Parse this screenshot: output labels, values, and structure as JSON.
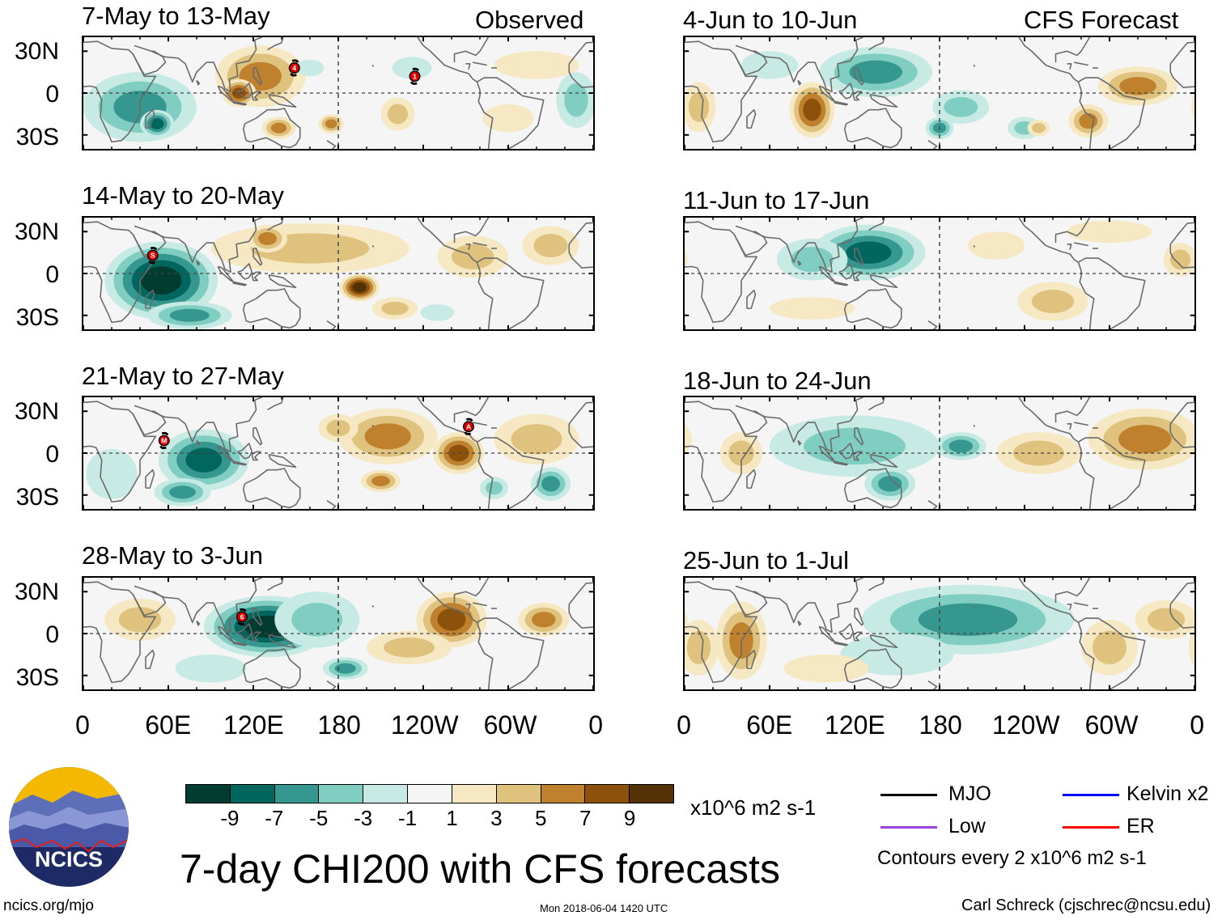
{
  "header": {
    "observed_label": "Observed",
    "forecast_label": "CFS Forecast"
  },
  "lat_labels": [
    "30N",
    "0",
    "30S"
  ],
  "lon_labels": [
    "0",
    "60E",
    "120E",
    "180",
    "120W",
    "60W",
    "0"
  ],
  "palette": [
    "#003c30",
    "#01665e",
    "#35978f",
    "#80cdc1",
    "#c7eae5",
    "#f5f5f5",
    "#f6e8c3",
    "#dfc27d",
    "#bf812d",
    "#8c510a",
    "#543005"
  ],
  "colorbar": {
    "ticks": [
      "-9",
      "-7",
      "-5",
      "-3",
      "-1",
      "1",
      "3",
      "5",
      "7",
      "9"
    ],
    "units": "x10^6 m2 s-1"
  },
  "panels": [
    {
      "title": "7-May to 13-May",
      "kind": "observed",
      "features": [
        [
          125,
          12,
          32,
          22,
          6
        ],
        [
          110,
          0,
          12,
          10,
          7
        ],
        [
          138,
          -25,
          12,
          8,
          5
        ],
        [
          175,
          -22,
          9,
          7,
          5
        ],
        [
          222,
          -15,
          12,
          12,
          4
        ],
        [
          300,
          -18,
          18,
          10,
          2
        ],
        [
          40,
          -10,
          40,
          25,
          -6
        ],
        [
          52,
          -22,
          12,
          10,
          -8
        ],
        [
          348,
          -5,
          14,
          20,
          -4
        ],
        [
          232,
          18,
          14,
          8,
          -2
        ],
        [
          160,
          18,
          10,
          6,
          -2
        ],
        [
          320,
          20,
          30,
          10,
          2
        ]
      ],
      "storms": [
        {
          "label": "4",
          "lon": 149,
          "lat": 18
        },
        {
          "label": "1",
          "lon": 234,
          "lat": 12
        }
      ]
    },
    {
      "title": "14-May to 20-May",
      "kind": "observed",
      "features": [
        [
          55,
          -5,
          40,
          28,
          -10
        ],
        [
          75,
          -30,
          30,
          10,
          -6
        ],
        [
          195,
          -10,
          14,
          10,
          9
        ],
        [
          220,
          -25,
          16,
          8,
          4
        ],
        [
          160,
          18,
          70,
          18,
          4
        ],
        [
          130,
          25,
          14,
          10,
          6
        ],
        [
          275,
          12,
          25,
          15,
          3
        ],
        [
          330,
          20,
          20,
          14,
          3
        ],
        [
          250,
          -28,
          12,
          6,
          -2
        ]
      ],
      "storms": [
        {
          "label": "S",
          "lon": 49,
          "lat": 13
        }
      ]
    },
    {
      "title": "21-May to 27-May",
      "kind": "observed",
      "features": [
        [
          85,
          -5,
          32,
          22,
          -8
        ],
        [
          70,
          -28,
          20,
          10,
          -5
        ],
        [
          215,
          12,
          35,
          20,
          5
        ],
        [
          265,
          0,
          18,
          15,
          7
        ],
        [
          210,
          -20,
          14,
          8,
          5
        ],
        [
          180,
          18,
          14,
          10,
          3
        ],
        [
          330,
          -22,
          14,
          12,
          -5
        ],
        [
          290,
          -25,
          10,
          8,
          -3
        ],
        [
          20,
          -15,
          18,
          18,
          -2
        ],
        [
          320,
          10,
          30,
          18,
          3
        ]
      ],
      "storms": [
        {
          "label": "M",
          "lon": 57,
          "lat": 9
        },
        {
          "label": "A",
          "lon": 272,
          "lat": 19
        }
      ]
    },
    {
      "title": "28-May to 3-Jun",
      "kind": "observed",
      "features": [
        [
          130,
          5,
          45,
          22,
          -10
        ],
        [
          185,
          -25,
          16,
          8,
          -5
        ],
        [
          165,
          10,
          30,
          20,
          -3
        ],
        [
          40,
          10,
          25,
          15,
          3
        ],
        [
          260,
          10,
          25,
          20,
          7
        ],
        [
          325,
          10,
          18,
          12,
          5
        ],
        [
          230,
          -10,
          30,
          12,
          3
        ],
        [
          90,
          -25,
          25,
          10,
          -2
        ]
      ],
      "storms": [
        {
          "label": "6",
          "lon": 112,
          "lat": 12
        }
      ]
    },
    {
      "title": "4-Jun to 10-Jun",
      "kind": "forecast",
      "features": [
        [
          90,
          -12,
          16,
          20,
          7
        ],
        [
          135,
          15,
          40,
          18,
          -5
        ],
        [
          180,
          -25,
          10,
          8,
          -5
        ],
        [
          195,
          -10,
          20,
          12,
          -3
        ],
        [
          240,
          -25,
          12,
          8,
          -3
        ],
        [
          320,
          5,
          28,
          14,
          6
        ],
        [
          285,
          -20,
          14,
          12,
          5
        ],
        [
          250,
          -25,
          8,
          6,
          3
        ],
        [
          10,
          -10,
          12,
          18,
          3
        ],
        [
          60,
          20,
          20,
          10,
          -2
        ]
      ],
      "storms": []
    },
    {
      "title": "11-Jun to 17-Jun",
      "kind": "forecast",
      "features": [
        [
          130,
          15,
          40,
          20,
          -7
        ],
        [
          90,
          10,
          25,
          15,
          -3
        ],
        [
          260,
          -20,
          25,
          14,
          4
        ],
        [
          350,
          10,
          12,
          12,
          3
        ],
        [
          300,
          30,
          30,
          8,
          2
        ],
        [
          90,
          -25,
          30,
          8,
          2
        ],
        [
          220,
          20,
          20,
          10,
          2
        ]
      ],
      "storms": []
    },
    {
      "title": "18-Jun to 24-Jun",
      "kind": "forecast",
      "features": [
        [
          120,
          5,
          60,
          22,
          -4
        ],
        [
          195,
          5,
          18,
          10,
          -5
        ],
        [
          145,
          -22,
          18,
          12,
          -5
        ],
        [
          325,
          10,
          40,
          22,
          5
        ],
        [
          40,
          0,
          15,
          15,
          4
        ],
        [
          250,
          0,
          30,
          15,
          3
        ]
      ],
      "storms": []
    },
    {
      "title": "25-Jun to 1-Jul",
      "kind": "forecast",
      "features": [
        [
          200,
          10,
          75,
          25,
          -5
        ],
        [
          150,
          -15,
          40,
          15,
          -2
        ],
        [
          40,
          -5,
          18,
          28,
          6
        ],
        [
          10,
          -10,
          14,
          20,
          3
        ],
        [
          300,
          -10,
          20,
          20,
          3
        ],
        [
          340,
          10,
          22,
          14,
          4
        ],
        [
          100,
          -25,
          30,
          10,
          2
        ]
      ],
      "storms": []
    }
  ],
  "legend": {
    "items": [
      {
        "label": "MJO",
        "color": "#000000"
      },
      {
        "label": "Kelvin x2",
        "color": "#0000ff"
      },
      {
        "label": "Low",
        "color": "#a040e0"
      },
      {
        "label": "ER",
        "color": "#ff0000"
      }
    ],
    "contours_note": "Contours every 2 x10^6 m2 s-1"
  },
  "footer": {
    "main_title": "7-day CHI200 with CFS forecasts",
    "logo_text": "NCICS",
    "site": "ncics.org/mjo",
    "timestamp": "Mon 2018-06-04 1420 UTC",
    "credit": "Carl Schreck (cjschrec@ncsu.edu)"
  }
}
